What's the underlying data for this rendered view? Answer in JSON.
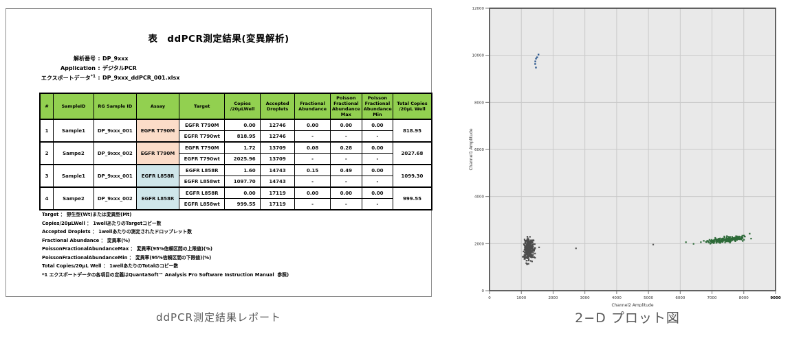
{
  "report": {
    "title": "表　ddPCR測定結果(変異解析)",
    "meta": [
      {
        "label": "解析番号",
        "sup": "",
        "value": "DP_9xxx"
      },
      {
        "label": "Application",
        "sup": "",
        "value": "デジタルPCR"
      },
      {
        "label": "エクスポートデータ",
        "sup": "*1",
        "value": "DP_9xxx_ddPCR_001.xlsx"
      }
    ],
    "table": {
      "header_bg": "#92d050",
      "headers": [
        [
          "#"
        ],
        [
          "SampleID"
        ],
        [
          "RG Sample ID"
        ],
        [
          "Assay"
        ],
        [
          "Target"
        ],
        [
          "Copies",
          "/20μLWell"
        ],
        [
          "Accepted",
          "Droplets"
        ],
        [
          "Fractional",
          "Abundance"
        ],
        [
          "Poisson",
          "Fractional",
          "Abundance",
          "Max"
        ],
        [
          "Poisson",
          "Fractional",
          "Abundance",
          "Min"
        ],
        [
          "Total Copies",
          "/20μL Well"
        ]
      ],
      "groups": [
        {
          "num": "1",
          "sample": "Sample1",
          "rg": "DP_9xxx_001",
          "assay": "EGFR T790M",
          "assay_color": "#fbdcc8",
          "total": "818.95",
          "rows": [
            {
              "target": "EGFR T790M",
              "copies": "0.00",
              "droplets": "12746",
              "fa": "0.00",
              "famax": "0.00",
              "famin": "0.00"
            },
            {
              "target": "EGFR T790wt",
              "copies": "818.95",
              "droplets": "12746",
              "fa": "-",
              "famax": "-",
              "famin": "-"
            }
          ]
        },
        {
          "num": "2",
          "sample": "Sampe2",
          "rg": "DP_9xxx_002",
          "assay": "EGFR T790M",
          "assay_color": "#fbdcc8",
          "total": "2027.68",
          "rows": [
            {
              "target": "EGFR T790M",
              "copies": "1.72",
              "droplets": "13709",
              "fa": "0.08",
              "famax": "0.28",
              "famin": "0.00"
            },
            {
              "target": "EGFR T790wt",
              "copies": "2025.96",
              "droplets": "13709",
              "fa": "-",
              "famax": "-",
              "famin": "-"
            }
          ]
        },
        {
          "num": "3",
          "sample": "Sample1",
          "rg": "DP_9xxx_001",
          "assay": "EGFR L858R",
          "assay_color": "#cfe6ea",
          "total": "1099.30",
          "rows": [
            {
              "target": "EGFR L858R",
              "copies": "1.60",
              "droplets": "14743",
              "fa": "0.15",
              "famax": "0.49",
              "famin": "0.00"
            },
            {
              "target": "EGFR L858wt",
              "copies": "1097.70",
              "droplets": "14743",
              "fa": "-",
              "famax": "-",
              "famin": "-"
            }
          ]
        },
        {
          "num": "4",
          "sample": "Sampe2",
          "rg": "DP_9xxx_002",
          "assay": "EGFR L858R",
          "assay_color": "#cfe6ea",
          "total": "999.55",
          "rows": [
            {
              "target": "EGFR L858R",
              "copies": "0.00",
              "droplets": "17119",
              "fa": "0.00",
              "famax": "0.00",
              "famin": "0.00"
            },
            {
              "target": "EGFR L858wt",
              "copies": "999.55",
              "droplets": "17119",
              "fa": "-",
              "famax": "-",
              "famin": "-"
            }
          ]
        }
      ]
    },
    "footnotes": [
      "Target ： 野生型(Wt)または変異型(Mt)",
      "Copies/20μLWell ： 1wellあたりのTargetコピー数",
      "Accepted Droplets ： 1wellあたりの測定されたドロップレット数",
      "Fractional Abundance ： 変異率(%)",
      "PoissonFractionalAbundanceMax ： 変異率(95%信頼区間の上限値)(%)",
      "PoissonFractionalAbundanceMin ： 変異率(95%信頼区間の下限値)(%)",
      "Total Copies/20μL Well ： 1wellあたりのTotalのコピー数",
      "*1 エクスポートデータの各項目の定義はQuantaSoft™ Analysis Pro Software Instruction Manual  参照)"
    ],
    "caption": "ddPCR測定結果レポート"
  },
  "plot": {
    "caption": "2−D プロット図"
  },
  "chart_data": {
    "type": "scatter",
    "title": "",
    "xlabel": "Channel2 Amplitude",
    "ylabel": "Channel1 Amplitude",
    "xlim": [
      0,
      9000
    ],
    "ylim": [
      0,
      12000
    ],
    "x_ticks": [
      0,
      1000,
      2000,
      3000,
      4000,
      5000,
      6000,
      7000,
      8000,
      9000
    ],
    "y_ticks": [
      0,
      2000,
      4000,
      6000,
      8000,
      10000,
      12000
    ],
    "grid": true,
    "legend": "none",
    "plot_bg": "#e9e9e9",
    "grid_color": "#c9c9c9",
    "border_color": "#3f3f3f",
    "clusters": [
      {
        "name": "negative-droplets",
        "color": "#4d4d4d",
        "center": [
          1230,
          1750
        ],
        "spread": [
          75,
          230
        ],
        "count": 300,
        "seed": 7,
        "slope": 0,
        "size": 2.2
      },
      {
        "name": "channel2-positive-droplets",
        "color": "#2d6a38",
        "center": [
          7480,
          2170
        ],
        "spread": [
          320,
          55
        ],
        "count": 230,
        "seed": 13,
        "slope": 0.15,
        "size": 2.2
      },
      {
        "name": "channel1-positive-droplets",
        "color": "#2f5a8f",
        "size": 2.4,
        "points": [
          [
            1540,
            10030
          ],
          [
            1498,
            9915
          ],
          [
            1462,
            9860
          ],
          [
            1440,
            9740
          ],
          [
            1437,
            9630
          ],
          [
            1460,
            9480
          ]
        ]
      }
    ],
    "outliers": [
      {
        "x": 1560,
        "y": 1840,
        "color": "#555555"
      },
      {
        "x": 2720,
        "y": 1800,
        "color": "#555555"
      },
      {
        "x": 5150,
        "y": 1960,
        "color": "#555555"
      },
      {
        "x": 6180,
        "y": 2060,
        "color": "#2d6a38"
      },
      {
        "x": 6420,
        "y": 1990,
        "color": "#2d6a38"
      },
      {
        "x": 6650,
        "y": 2060,
        "color": "#2d6a38"
      }
    ]
  }
}
